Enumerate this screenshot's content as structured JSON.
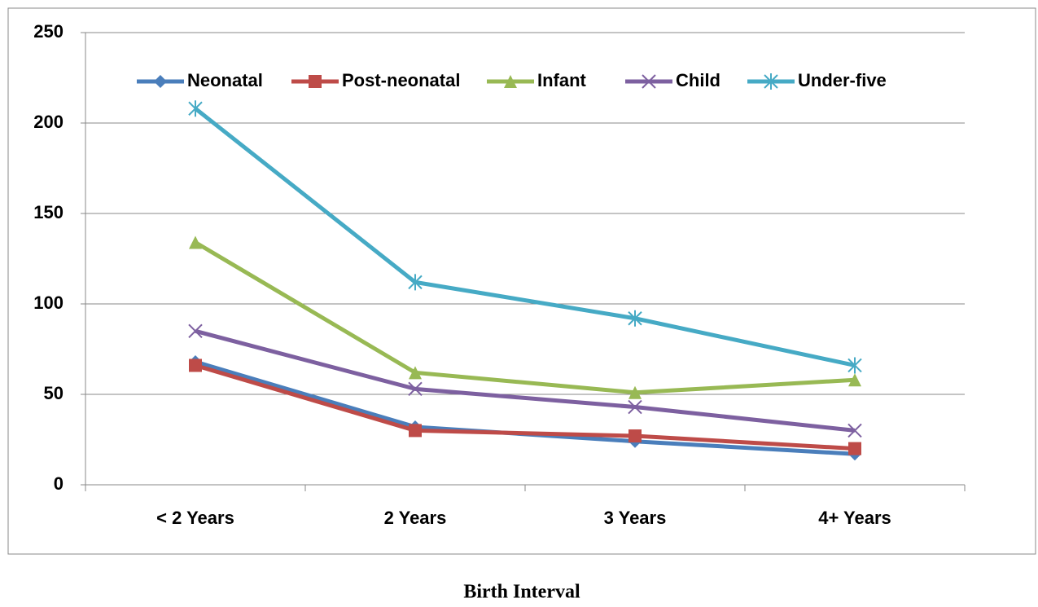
{
  "chart_data": {
    "type": "line",
    "x_label": "Birth Interval",
    "categories": [
      "< 2 Years",
      "2 Years",
      "3 Years",
      "4+ Years"
    ],
    "series": [
      {
        "name": "Neonatal",
        "color": "#4a7ebb",
        "marker": "diamond",
        "values": [
          68,
          32,
          24,
          17
        ]
      },
      {
        "name": "Post-neonatal",
        "color": "#be4b48",
        "marker": "square",
        "values": [
          66,
          30,
          27,
          20
        ]
      },
      {
        "name": "Infant",
        "color": "#98b954",
        "marker": "triangle",
        "values": [
          134,
          62,
          51,
          58
        ]
      },
      {
        "name": "Child",
        "color": "#7d60a0",
        "marker": "x",
        "values": [
          85,
          53,
          43,
          30
        ]
      },
      {
        "name": "Under-five",
        "color": "#46aac5",
        "marker": "star",
        "values": [
          208,
          112,
          92,
          66
        ]
      }
    ],
    "ylim": [
      0,
      250
    ],
    "yticks": [
      0,
      50,
      100,
      150,
      200,
      250
    ],
    "grid": true,
    "legend": "top"
  }
}
